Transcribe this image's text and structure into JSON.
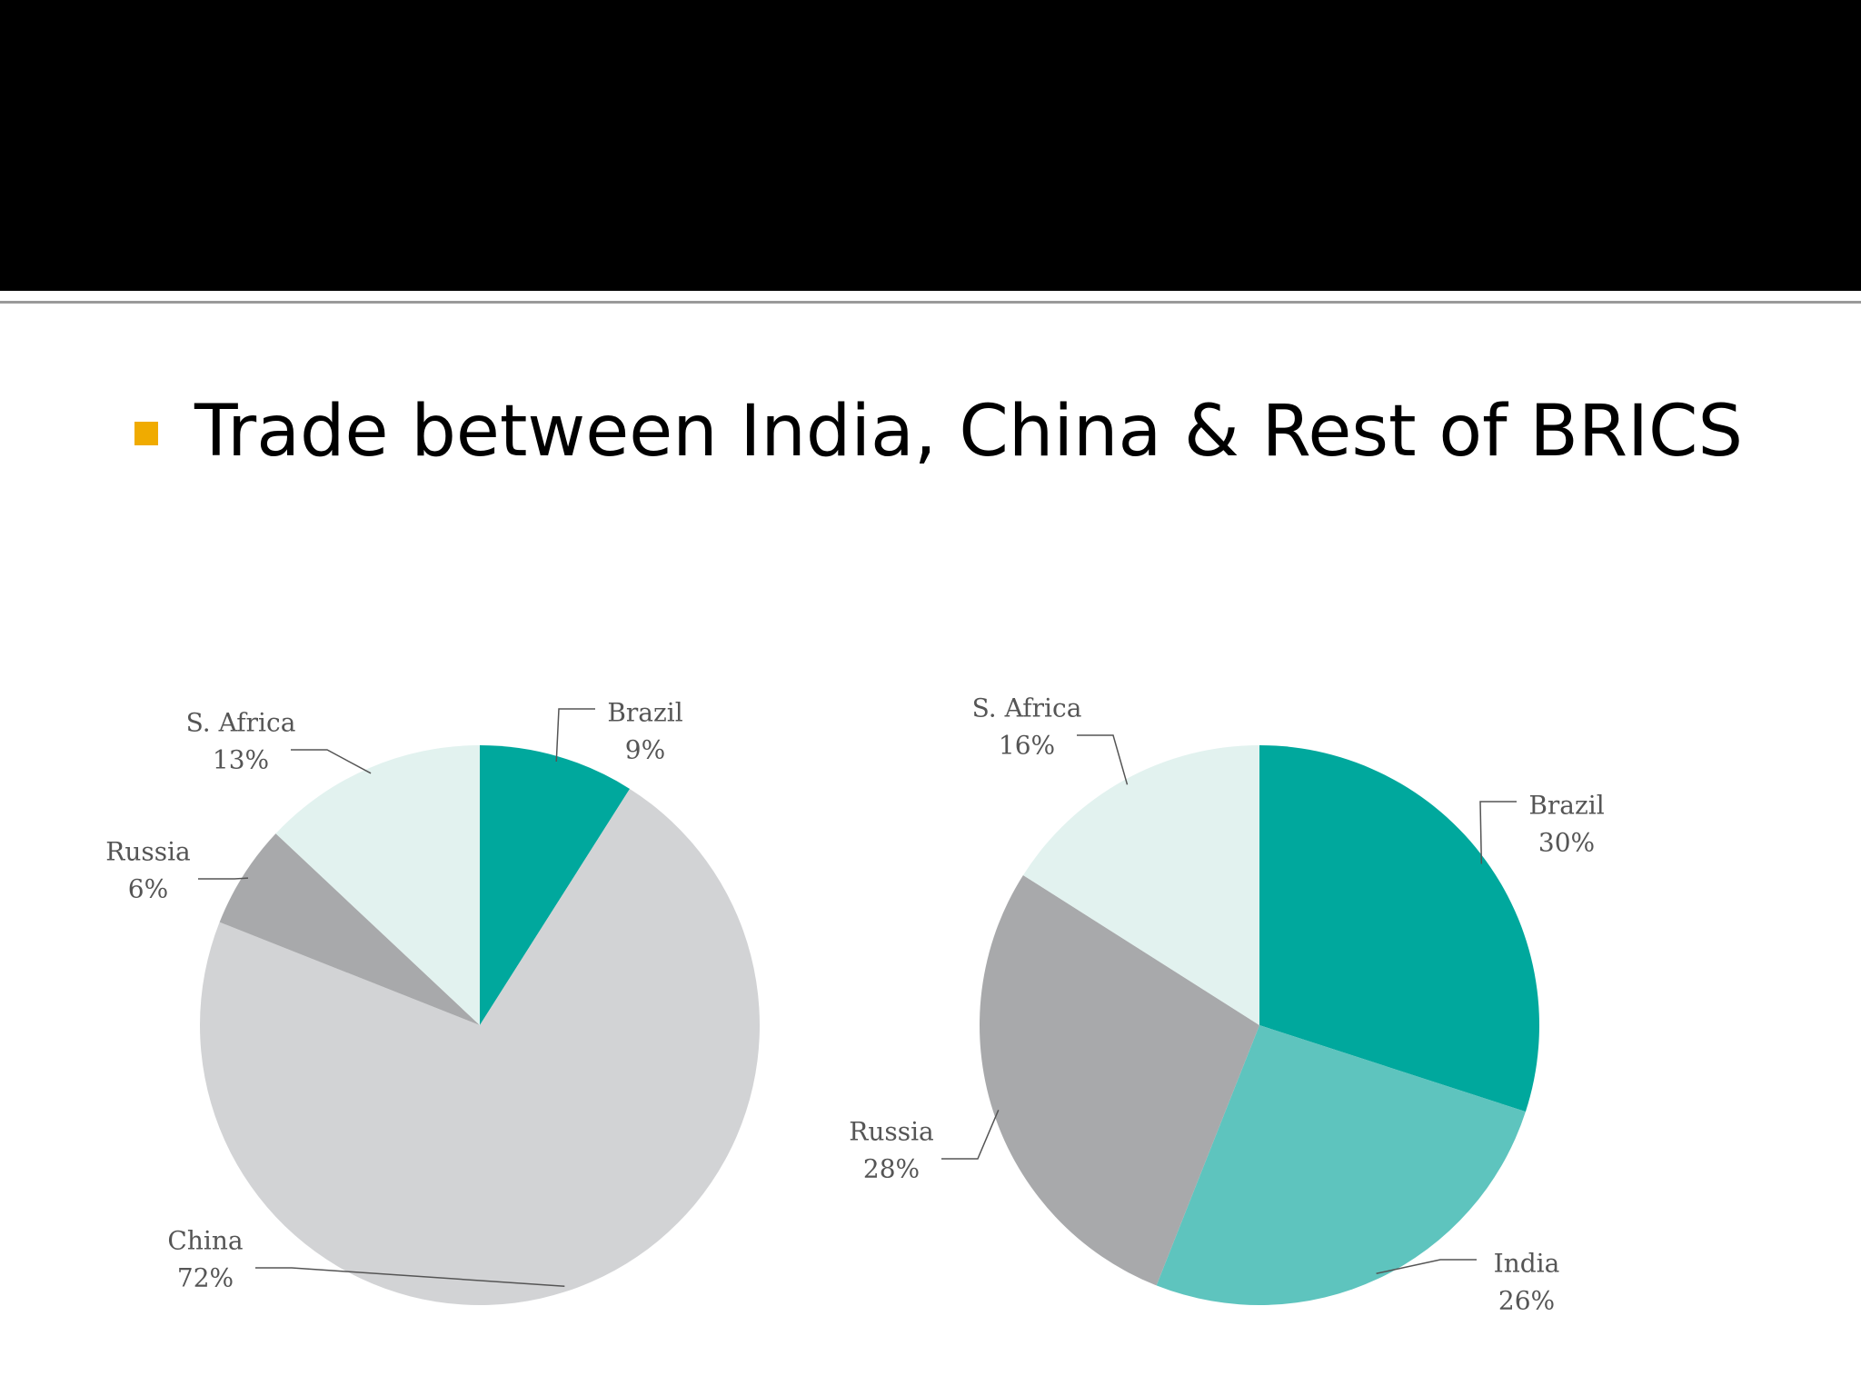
{
  "slide": {
    "bullet": "Trade between India, China & Rest of BRICS"
  },
  "chart_data": [
    {
      "type": "pie",
      "categories": [
        "Brazil",
        "China",
        "Russia",
        "S. Africa"
      ],
      "values": [
        9,
        72,
        6,
        13
      ],
      "value_labels": [
        "9%",
        "72%",
        "6%",
        "13%"
      ],
      "colors": [
        "#00a89d",
        "#d2d3d5",
        "#a8a9ab",
        "#e2f2ef"
      ]
    },
    {
      "type": "pie",
      "categories": [
        "Brazil",
        "India",
        "Russia",
        "S. Africa"
      ],
      "values": [
        30,
        26,
        28,
        16
      ],
      "value_labels": [
        "30%",
        "26%",
        "28%",
        "16%"
      ],
      "colors": [
        "#00a89d",
        "#5ec4be",
        "#a8a9ab",
        "#e2f2ef"
      ]
    }
  ]
}
